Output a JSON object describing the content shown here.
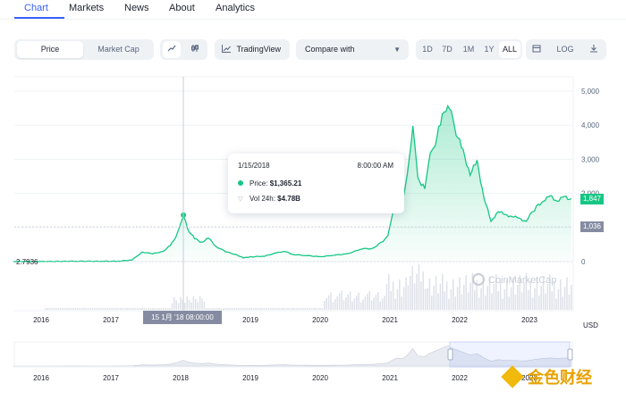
{
  "tabs": [
    "Chart",
    "Markets",
    "News",
    "About",
    "Analytics"
  ],
  "toolbar": {
    "price_label": "Price",
    "market_cap_label": "Market Cap",
    "line_icon": "line-chart-icon",
    "candle_icon": "candlestick-icon",
    "tradingview_label": "TradingView",
    "compare_label": "Compare with",
    "ranges": [
      "1D",
      "7D",
      "1M",
      "1Y",
      "ALL"
    ],
    "active_range": "ALL",
    "calendar_icon": "calendar-icon",
    "log_label": "LOG",
    "download_icon": "download-icon"
  },
  "tooltip": {
    "date": "1/15/2018",
    "time": "8:00:00 AM",
    "price_label": "Price:",
    "price_value": "$1,365.21",
    "vol_label": "Vol 24h:",
    "vol_value": "$4.78B"
  },
  "crosshair_label": "15 1月 '18   08:00:00",
  "start_label": "2.7936",
  "badges": {
    "current": "1,847",
    "reference": "1,036"
  },
  "watermark": "CoinMarketCap",
  "currency": "USD",
  "brand": "金色财经",
  "colors": {
    "accent": "#3861fb",
    "up": "#16c784",
    "grid": "#eff2f5",
    "badge_gray": "#858ca2"
  },
  "chart_data": {
    "type": "area",
    "y_ticks": [
      "5,000",
      "4,000",
      "3,000",
      "2,000",
      "1,000",
      "0"
    ],
    "x_ticks": [
      "2016",
      "2017",
      "2018",
      "2019",
      "2020",
      "2021",
      "2022",
      "2023"
    ],
    "ylim": [
      0,
      5000
    ],
    "x": [
      2015.6,
      2016.0,
      2016.5,
      2016.9,
      2017.1,
      2017.3,
      2017.45,
      2017.6,
      2017.75,
      2017.85,
      2017.93,
      2017.97,
      2018.0,
      2018.04,
      2018.1,
      2018.2,
      2018.3,
      2018.4,
      2018.5,
      2018.65,
      2018.8,
      2018.9,
      2019.0,
      2019.2,
      2019.4,
      2019.5,
      2019.6,
      2019.8,
      2020.0,
      2020.2,
      2020.4,
      2020.6,
      2020.75,
      2020.9,
      2020.97,
      2021.03,
      2021.1,
      2021.18,
      2021.25,
      2021.33,
      2021.4,
      2021.5,
      2021.58,
      2021.65,
      2021.75,
      2021.83,
      2021.88,
      2021.95,
      2022.05,
      2022.15,
      2022.25,
      2022.35,
      2022.45,
      2022.55,
      2022.65,
      2022.75,
      2022.85,
      2022.95,
      2023.1,
      2023.2,
      2023.3,
      2023.4,
      2023.5,
      2023.6
    ],
    "y": [
      2.79,
      2.9,
      11,
      9,
      11,
      45,
      280,
      230,
      300,
      470,
      700,
      950,
      1100,
      1365,
      950,
      680,
      560,
      700,
      450,
      290,
      200,
      110,
      140,
      160,
      270,
      300,
      210,
      180,
      140,
      190,
      230,
      380,
      380,
      600,
      740,
      1350,
      1850,
      1750,
      2500,
      4100,
      2400,
      2200,
      3100,
      3500,
      4200,
      4700,
      4300,
      3800,
      3200,
      2600,
      2900,
      1900,
      1150,
      1500,
      1350,
      1350,
      1250,
      1200,
      1600,
      1800,
      1900,
      1800,
      1880,
      1847
    ],
    "volume_note": "volume bars along bottom"
  },
  "navigator": {
    "x_ticks": [
      "2016",
      "2017",
      "2018",
      "2019",
      "2020",
      "2021",
      "2022",
      "2023"
    ]
  }
}
